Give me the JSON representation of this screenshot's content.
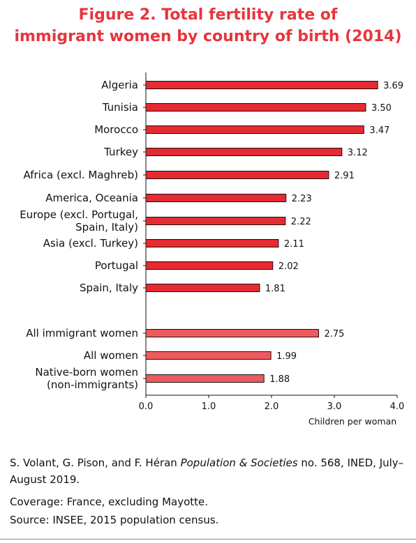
{
  "title": {
    "line1": "Figure 2. Total fertility rate of",
    "line2": "immigrant women by country of birth (2014)"
  },
  "colors": {
    "title": "#e8353c",
    "bar_main": "#e62a32",
    "bar_aggregate": "#ef5a5f",
    "bar_outline": "#111111"
  },
  "chart_data": {
    "type": "bar",
    "orientation": "horizontal",
    "categories": [
      [
        "Algeria"
      ],
      [
        "Tunisia"
      ],
      [
        "Morocco"
      ],
      [
        "Turkey"
      ],
      [
        "Africa (excl. Maghreb)"
      ],
      [
        "America, Oceania"
      ],
      [
        "Europe (excl. Portugal,",
        "Spain, Italy)"
      ],
      [
        "Asia (excl. Turkey)"
      ],
      [
        "Portugal"
      ],
      [
        "Spain, Italy"
      ],
      [
        "All immigrant women"
      ],
      [
        "All women"
      ],
      [
        "Native-born women",
        "(non-immigrants)"
      ]
    ],
    "values": [
      3.69,
      3.5,
      3.47,
      3.12,
      2.91,
      2.23,
      2.22,
      2.11,
      2.02,
      1.81,
      2.75,
      1.99,
      1.88
    ],
    "value_labels": [
      "3.69",
      "3.50",
      "3.47",
      "3.12",
      "2.91",
      "2.23",
      "2.22",
      "2.11",
      "2.02",
      "1.81",
      "2.75",
      "1.99",
      "1.88"
    ],
    "groups": [
      "country",
      "country",
      "country",
      "country",
      "country",
      "country",
      "country",
      "country",
      "country",
      "country",
      "aggregate",
      "aggregate",
      "aggregate"
    ],
    "xlim": [
      0,
      4
    ],
    "xticks": [
      "0.0",
      "1.0",
      "2.0",
      "3.0",
      "4.0"
    ],
    "xlabel": "Children per woman",
    "ylabel": "",
    "grid": false,
    "legend": "none"
  },
  "notes": {
    "citation_authors": "S. Volant, G. Pison, and F. Héran ",
    "citation_journal": "Population & Societies",
    "citation_rest": " no. 568, INED, July–August 2019.",
    "coverage": "Coverage: France, excluding Mayotte.",
    "source": "Source: INSEE, 2015 population census."
  }
}
